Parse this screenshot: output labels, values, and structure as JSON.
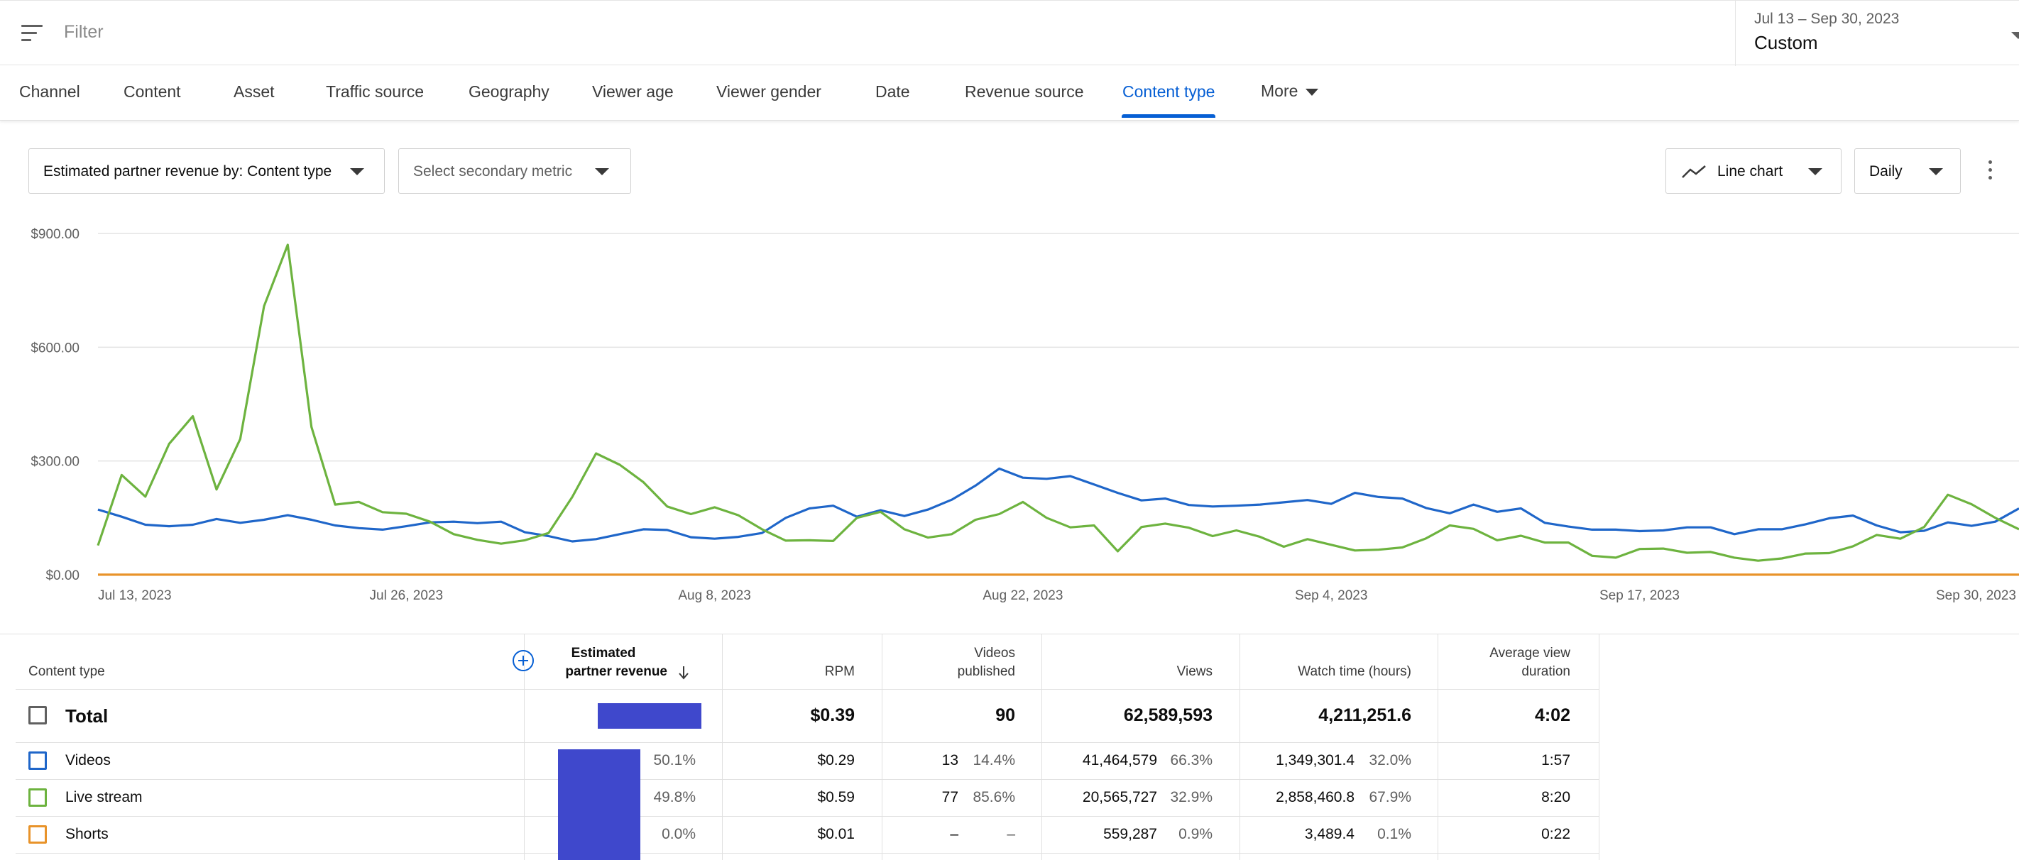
{
  "filter": {
    "placeholder": "Filter"
  },
  "date_picker": {
    "range": "Jul 13 – Sep 30, 2023",
    "preset": "Custom"
  },
  "tabs": [
    {
      "label": "Channel",
      "active": false
    },
    {
      "label": "Content",
      "active": false
    },
    {
      "label": "Asset",
      "active": false
    },
    {
      "label": "Traffic source",
      "active": false
    },
    {
      "label": "Geography",
      "active": false
    },
    {
      "label": "Viewer age",
      "active": false
    },
    {
      "label": "Viewer gender",
      "active": false
    },
    {
      "label": "Date",
      "active": false
    },
    {
      "label": "Revenue source",
      "active": false
    },
    {
      "label": "Content type",
      "active": true
    },
    {
      "label": "More",
      "active": false
    }
  ],
  "controls": {
    "primary_metric": "Estimated partner revenue by: Content type",
    "secondary_metric": "Select secondary metric",
    "chart_type": "Line chart",
    "granularity": "Daily"
  },
  "colors": {
    "videos": "#1f66c9",
    "live_stream": "#6db33f",
    "shorts": "#e8932a",
    "accent": "#065fd4",
    "revenue_bar": "#3f48cc"
  },
  "chart_data": {
    "type": "line",
    "x_tick_labels": [
      "Jul 13, 2023",
      "Jul 26, 2023",
      "Aug 8, 2023",
      "Aug 22, 2023",
      "Sep 4, 2023",
      "Sep 17, 2023",
      "Sep 30, 2023"
    ],
    "y_tick_labels": [
      "$0.00",
      "$300.00",
      "$600.00",
      "$900.00"
    ],
    "ylim": [
      0,
      900
    ],
    "grid": true,
    "series": [
      {
        "name": "Videos",
        "color": "#1f66c9",
        "values": [
          172,
          153,
          132,
          128,
          132,
          147,
          137,
          145,
          157,
          145,
          130,
          123,
          119,
          128,
          138,
          140,
          136,
          140,
          112,
          102,
          88,
          94,
          107,
          120,
          118,
          99,
          95,
          100,
          110,
          150,
          175,
          182,
          153,
          170,
          155,
          172,
          198,
          235,
          280,
          256,
          253,
          260,
          238,
          216,
          196,
          201,
          184,
          180,
          182,
          185,
          191,
          197,
          187,
          216,
          205,
          201,
          176,
          162,
          185,
          166,
          175,
          137,
          127,
          119,
          119,
          115,
          117,
          125,
          125,
          107,
          120,
          120,
          133,
          149,
          156,
          130,
          112,
          116,
          138,
          129,
          140,
          175
        ]
      },
      {
        "name": "Live stream",
        "color": "#6db33f",
        "values": [
          77,
          263,
          206,
          345,
          418,
          225,
          358,
          708,
          870,
          390,
          185,
          192,
          165,
          161,
          140,
          107,
          92,
          82,
          91,
          110,
          205,
          320,
          290,
          244,
          180,
          160,
          178,
          157,
          120,
          90,
          91,
          89,
          150,
          166,
          120,
          98,
          107,
          145,
          160,
          192,
          150,
          125,
          130,
          62,
          126,
          135,
          124,
          102,
          117,
          100,
          74,
          94,
          79,
          64,
          66,
          72,
          96,
          130,
          121,
          91,
          103,
          85,
          85,
          50,
          45,
          68,
          69,
          58,
          60,
          45,
          37,
          43,
          56,
          57,
          75,
          105,
          95,
          126,
          211,
          186,
          150,
          120
        ]
      },
      {
        "name": "Shorts",
        "color": "#e8932a",
        "values": [
          0.1,
          0.1,
          0.1,
          0.1,
          0.1,
          0.1,
          0.1,
          0.1,
          0.1,
          0.1,
          0.1,
          0.1,
          0.1,
          0.1,
          0.1,
          0.1,
          0.1,
          0.1,
          0.1,
          0.1,
          0.1,
          0.1,
          0.1,
          0.1,
          0.1,
          0.1,
          0.1,
          0.1,
          0.1,
          0.1,
          0.1,
          0.1,
          0.1,
          0.1,
          0.1,
          0.1,
          0.1,
          0.1,
          0.1,
          0.1,
          0.1,
          0.1,
          0.1,
          0.1,
          0.1,
          0.1,
          0.1,
          0.1,
          0.1,
          0.1,
          0.1,
          0.1,
          0.1,
          0.1,
          0.1,
          0.1,
          0.1,
          0.1,
          0.1,
          0.1,
          0.1,
          0.1,
          0.1,
          0.1,
          0.1,
          0.1,
          0.1,
          0.1,
          0.1,
          0.1,
          0.1,
          0.1,
          0.1,
          0.1,
          0.1,
          0.1,
          0.1,
          0.1,
          0.1,
          0.1,
          0.1,
          0.1
        ]
      }
    ]
  },
  "table": {
    "headers": {
      "content_type": "Content type",
      "revenue_line1": "Estimated",
      "revenue_line2": "partner revenue",
      "rpm": "RPM",
      "videos_line1": "Videos",
      "videos_line2": "published",
      "views": "Views",
      "watch_time": "Watch time (hours)",
      "avd_line1": "Average view",
      "avd_line2": "duration"
    },
    "total": {
      "label": "Total",
      "rpm": "$0.39",
      "videos_published": "90",
      "views": "62,589,593",
      "watch_time": "4,211,251.6",
      "avd": "4:02"
    },
    "rows": [
      {
        "label": "Videos",
        "color": "#1f66c9",
        "revenue_pct": "50.1%",
        "revenue_share": 0.501,
        "rpm": "$0.29",
        "videos_published": "13",
        "videos_pct": "14.4%",
        "views": "41,464,579",
        "views_pct": "66.3%",
        "watch_time": "1,349,301.4",
        "watch_pct": "32.0%",
        "avd": "1:57"
      },
      {
        "label": "Live stream",
        "color": "#6db33f",
        "revenue_pct": "49.8%",
        "revenue_share": 0.498,
        "rpm": "$0.59",
        "videos_published": "77",
        "videos_pct": "85.6%",
        "views": "20,565,727",
        "views_pct": "32.9%",
        "watch_time": "2,858,460.8",
        "watch_pct": "67.9%",
        "avd": "8:20"
      },
      {
        "label": "Shorts",
        "color": "#e8932a",
        "revenue_pct": "0.0%",
        "revenue_share": 0.0,
        "rpm": "$0.01",
        "videos_published": "–",
        "videos_pct": "–",
        "views": "559,287",
        "views_pct": "0.9%",
        "watch_time": "3,489.4",
        "watch_pct": "0.1%",
        "avd": "0:22"
      }
    ]
  }
}
